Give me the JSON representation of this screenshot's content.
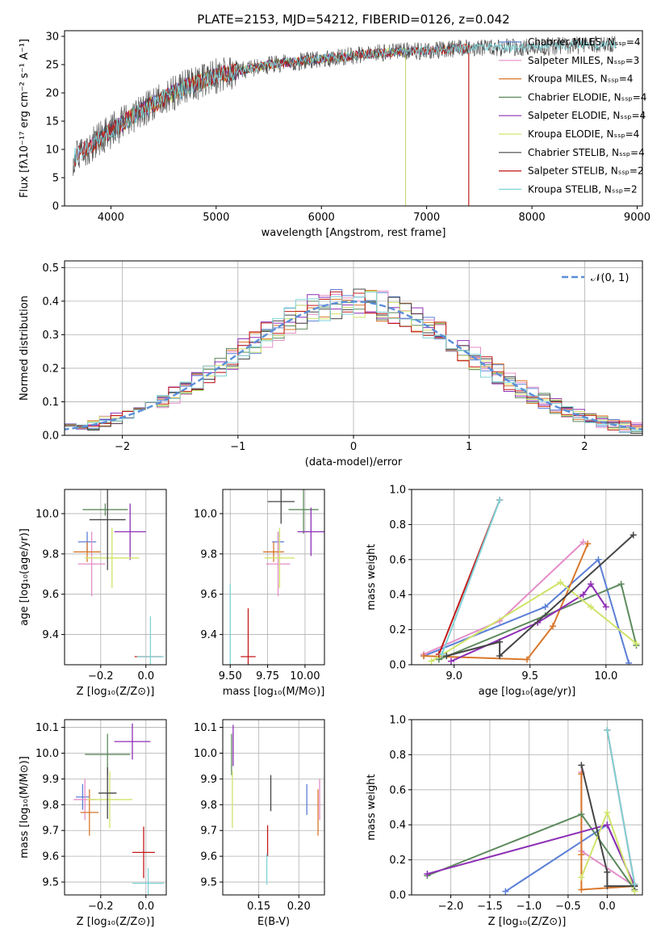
{
  "figure": {
    "title": "PLATE=2153, MJD=54212, FIBERID=0126, z=0.042"
  },
  "chart_data": [
    {
      "id": "spectrum",
      "type": "line",
      "xlabel": "wavelength [Angstrom, rest frame]",
      "ylabel": "Flux [fλ10⁻¹⁷ erg cm⁻² s⁻¹ A⁻¹]",
      "xlim": [
        3560,
        9050
      ],
      "ylim": [
        0,
        31
      ],
      "xticks": [
        4000,
        5000,
        6000,
        7000,
        8000,
        9000
      ],
      "yticks": [
        0,
        5,
        10,
        15,
        20,
        25,
        30
      ],
      "grid": false,
      "legend_position": "top-right",
      "series": [
        {
          "name": "Chabrier MILES, Nₛₛₚ=4",
          "color": "#5b7fd6",
          "x": [
            3640,
            3900,
            4300,
            4700,
            5000,
            5500,
            6000,
            6500,
            7000,
            7400
          ]
        },
        {
          "name": "Salpeter MILES, Nₛₛₚ=3",
          "color": "#e48ec8",
          "x": [
            3640,
            3900,
            4300,
            4700,
            5000,
            5500,
            6000,
            6500,
            7000,
            7400
          ]
        },
        {
          "name": "Kroupa MILES, Nₛₛₚ=4",
          "color": "#d9772b",
          "x": [
            3640,
            3900,
            4300,
            4700,
            5000,
            5500,
            6000,
            6500,
            7000,
            7400
          ]
        },
        {
          "name": "Chabrier ELODIE, Nₛₛₚ=4",
          "color": "#5d8a5d",
          "x": [
            3900,
            4300,
            4700,
            5000,
            5500,
            6000,
            6500,
            6800
          ]
        },
        {
          "name": "Salpeter ELODIE, Nₛₛₚ=4",
          "color": "#8e2fb5",
          "x": [
            3900,
            4300,
            4700,
            5000,
            5500,
            6000,
            6500,
            6800
          ]
        },
        {
          "name": "Kroupa ELODIE, Nₛₛₚ=4",
          "color": "#d0e46a",
          "x": [
            3900,
            4300,
            4700,
            5000,
            5500,
            6000,
            6500,
            6800
          ]
        },
        {
          "name": "Chabrier STELIB, Nₛₛₚ=4",
          "color": "#444444",
          "x": [
            3640,
            3900,
            4300,
            4700,
            5000,
            5500,
            6000,
            6500,
            7000,
            7500,
            8000,
            8500,
            8800
          ]
        },
        {
          "name": "Salpeter STELIB, Nₛₛₚ=2",
          "color": "#c21a1a",
          "x": [
            3640,
            3900,
            4300,
            4700,
            5000,
            5500,
            6000,
            6500,
            7000,
            7400
          ]
        },
        {
          "name": "Kroupa STELIB, Nₛₛₚ=2",
          "color": "#7fd3d8",
          "x": [
            3640,
            3900,
            4300,
            4700,
            5000,
            5500,
            6000,
            6500,
            7000,
            7500,
            8000,
            8500,
            8800
          ]
        }
      ],
      "continuum_y": [
        8.5,
        12,
        17,
        21,
        23,
        25,
        26,
        27,
        27.5,
        28,
        28,
        28.5,
        28.5
      ]
    },
    {
      "id": "residuals",
      "type": "line",
      "xlabel": "(data-model)/error",
      "ylabel": "Normed distribution",
      "xlim": [
        -2.5,
        2.5
      ],
      "ylim": [
        0,
        0.52
      ],
      "xticks": [
        -2,
        -1,
        0,
        1,
        2
      ],
      "yticks": [
        0.0,
        0.1,
        0.2,
        0.3,
        0.4,
        0.5
      ],
      "grid": true,
      "legend_position": "top-right",
      "legend": [
        "𝒩(0, 1)"
      ],
      "reference_curve": {
        "type": "gaussian",
        "mean": 0,
        "sigma": 1,
        "color": "#5b8fd8"
      }
    },
    {
      "id": "z-age",
      "type": "scatter",
      "xlabel": "Z [log₁₀(Z/Z⊙)]",
      "ylabel": "age  [log₁₀(age/yr)]",
      "xlim": [
        -0.36,
        0.09
      ],
      "ylim": [
        9.25,
        10.12
      ],
      "xticks": [
        -0.2,
        0.0
      ],
      "yticks": [
        9.4,
        9.6,
        9.8,
        10.0
      ],
      "grid": true,
      "points": [
        {
          "x": -0.26,
          "y": 9.86,
          "xerr": 0.04,
          "yerr": 0.05,
          "color": "#5b7fd6"
        },
        {
          "x": -0.24,
          "y": 9.75,
          "xerr": 0.06,
          "yerr": 0.16,
          "color": "#e48ec8"
        },
        {
          "x": -0.26,
          "y": 9.81,
          "xerr": 0.06,
          "yerr": 0.05,
          "color": "#d9772b"
        },
        {
          "x": -0.18,
          "y": 10.02,
          "xerr": 0.1,
          "yerr": 0.03,
          "color": "#5d8a5d"
        },
        {
          "x": -0.07,
          "y": 9.91,
          "xerr": 0.07,
          "yerr": 0.14,
          "color": "#8e2fb5"
        },
        {
          "x": -0.15,
          "y": 9.78,
          "xerr": 0.12,
          "yerr": 0.15,
          "color": "#d0e46a"
        },
        {
          "x": -0.17,
          "y": 9.97,
          "xerr": 0.08,
          "yerr": 0.25,
          "color": "#444444"
        },
        {
          "x": 0.01,
          "y": 9.29,
          "xerr": 0.06,
          "yerr": 0.0,
          "color": "#c21a1a"
        },
        {
          "x": 0.02,
          "y": 9.29,
          "xerr": 0.06,
          "yerr": 0.2,
          "color": "#7fd3d8"
        }
      ]
    },
    {
      "id": "mass-age",
      "type": "scatter",
      "xlabel": "mass [log₁₀(M/M⊙)]",
      "ylabel": "",
      "xlim": [
        9.45,
        10.13
      ],
      "ylim": [
        9.25,
        10.12
      ],
      "xticks": [
        9.5,
        9.75,
        10.0
      ],
      "yticks": [
        9.4,
        9.6,
        9.8,
        10.0
      ],
      "grid": true,
      "points": [
        {
          "x": 9.82,
          "y": 9.86,
          "xerr": 0.04,
          "yerr": 0.05,
          "color": "#5b7fd6"
        },
        {
          "x": 9.82,
          "y": 9.75,
          "xerr": 0.08,
          "yerr": 0.16,
          "color": "#e48ec8"
        },
        {
          "x": 9.79,
          "y": 9.81,
          "xerr": 0.07,
          "yerr": 0.05,
          "color": "#d9772b"
        },
        {
          "x": 9.99,
          "y": 10.02,
          "xerr": 0.1,
          "yerr": 0.12,
          "color": "#5d8a5d"
        },
        {
          "x": 10.04,
          "y": 9.91,
          "xerr": 0.09,
          "yerr": 0.12,
          "color": "#8e2fb5"
        },
        {
          "x": 9.83,
          "y": 9.78,
          "xerr": 0.1,
          "yerr": 0.15,
          "color": "#d0e46a"
        },
        {
          "x": 9.84,
          "y": 10.06,
          "xerr": 0.09,
          "yerr": 0.11,
          "color": "#444444"
        },
        {
          "x": 9.62,
          "y": 9.29,
          "xerr": 0.05,
          "yerr": 0.24,
          "color": "#c21a1a"
        },
        {
          "x": 9.5,
          "y": 9.29,
          "xerr": 0.0,
          "yerr": 0.36,
          "color": "#7fd3d8"
        }
      ]
    },
    {
      "id": "age-massweight",
      "type": "line",
      "xlabel": "age  [log₁₀(age/yr)]",
      "ylabel": "mass weight",
      "xlim": [
        8.72,
        10.24
      ],
      "ylim": [
        0,
        1.0
      ],
      "xticks": [
        9.0,
        9.5,
        10.0
      ],
      "yticks": [
        0.0,
        0.2,
        0.4,
        0.6,
        0.8,
        1.0
      ],
      "grid": true,
      "series": [
        {
          "color": "#5b7fd6",
          "x": [
            8.8,
            9.6,
            9.95,
            10.15
          ],
          "y": [
            0.05,
            0.33,
            0.6,
            0.01
          ]
        },
        {
          "color": "#e48ec8",
          "x": [
            8.8,
            9.3,
            9.85
          ],
          "y": [
            0.06,
            0.25,
            0.7
          ]
        },
        {
          "color": "#d9772b",
          "x": [
            8.8,
            9.48,
            9.65,
            9.88
          ],
          "y": [
            0.05,
            0.03,
            0.22,
            0.69
          ]
        },
        {
          "color": "#5d8a5d",
          "x": [
            8.9,
            9.6,
            10.1,
            10.2
          ],
          "y": [
            0.03,
            0.28,
            0.46,
            0.11
          ]
        },
        {
          "color": "#8e2fb5",
          "x": [
            8.98,
            9.55,
            9.85,
            9.9,
            10.0
          ],
          "y": [
            0.02,
            0.24,
            0.4,
            0.46,
            0.33
          ]
        },
        {
          "color": "#d0e46a",
          "x": [
            8.85,
            9.7,
            9.9,
            10.2
          ],
          "y": [
            0.02,
            0.47,
            0.33,
            0.12
          ]
        },
        {
          "color": "#444444",
          "x": [
            8.95,
            9.3,
            9.3,
            10.18
          ],
          "y": [
            0.05,
            0.13,
            0.05,
            0.74
          ]
        },
        {
          "color": "#c21a1a",
          "x": [
            8.9,
            9.3
          ],
          "y": [
            0.06,
            0.94
          ]
        },
        {
          "color": "#7fd3d8",
          "x": [
            8.92,
            9.3
          ],
          "y": [
            0.06,
            0.94
          ]
        }
      ]
    },
    {
      "id": "z-mass",
      "type": "scatter",
      "xlabel": "Z [log₁₀(Z/Z⊙)]",
      "ylabel": "mass [log₁₀(M/M⊙)]",
      "xlim": [
        -0.36,
        0.09
      ],
      "ylim": [
        9.45,
        10.13
      ],
      "xticks": [
        -0.2,
        0.0
      ],
      "yticks": [
        9.5,
        9.6,
        9.7,
        9.8,
        9.9,
        10.0,
        10.1
      ],
      "grid": true,
      "points": [
        {
          "x": -0.28,
          "y": 9.83,
          "xerr": 0.03,
          "yerr": 0.05,
          "color": "#5b7fd6"
        },
        {
          "x": -0.27,
          "y": 9.82,
          "xerr": 0.05,
          "yerr": 0.08,
          "color": "#e48ec8"
        },
        {
          "x": -0.25,
          "y": 9.77,
          "xerr": 0.04,
          "yerr": 0.09,
          "color": "#d9772b"
        },
        {
          "x": -0.17,
          "y": 9.995,
          "xerr": 0.1,
          "yerr": 0.08,
          "color": "#5d8a5d"
        },
        {
          "x": -0.06,
          "y": 10.045,
          "xerr": 0.08,
          "yerr": 0.07,
          "color": "#8e2fb5"
        },
        {
          "x": -0.16,
          "y": 9.82,
          "xerr": 0.1,
          "yerr": 0.11,
          "color": "#d0e46a"
        },
        {
          "x": -0.17,
          "y": 9.845,
          "xerr": 0.04,
          "yerr": 0.1,
          "color": "#444444"
        },
        {
          "x": -0.01,
          "y": 9.615,
          "xerr": 0.05,
          "yerr": 0.1,
          "color": "#c21a1a"
        },
        {
          "x": 0.01,
          "y": 9.495,
          "xerr": 0.07,
          "yerr": 0.06,
          "color": "#7fd3d8"
        }
      ]
    },
    {
      "id": "ebv-mass",
      "type": "scatter",
      "xlabel": "E(B-V)",
      "ylabel": "",
      "xlim": [
        0.105,
        0.232
      ],
      "ylim": [
        9.45,
        10.13
      ],
      "xticks": [
        0.15,
        0.2
      ],
      "yticks": [
        9.5,
        9.6,
        9.7,
        9.8,
        9.9,
        10.0,
        10.1
      ],
      "grid": true,
      "points": [
        {
          "x": 0.21,
          "y": 9.82,
          "xerr": 0.0,
          "yerr": 0.06,
          "color": "#5b7fd6"
        },
        {
          "x": 0.226,
          "y": 9.82,
          "xerr": 0.0,
          "yerr": 0.08,
          "color": "#e48ec8"
        },
        {
          "x": 0.224,
          "y": 9.77,
          "xerr": 0.0,
          "yerr": 0.09,
          "color": "#d9772b"
        },
        {
          "x": 0.116,
          "y": 9.995,
          "xerr": 0.0,
          "yerr": 0.08,
          "color": "#5d8a5d"
        },
        {
          "x": 0.118,
          "y": 10.03,
          "xerr": 0.0,
          "yerr": 0.08,
          "color": "#8e2fb5"
        },
        {
          "x": 0.117,
          "y": 9.82,
          "xerr": 0.0,
          "yerr": 0.11,
          "color": "#d0e46a"
        },
        {
          "x": 0.165,
          "y": 9.845,
          "xerr": 0.0,
          "yerr": 0.07,
          "color": "#444444"
        },
        {
          "x": 0.161,
          "y": 9.66,
          "xerr": 0.0,
          "yerr": 0.06,
          "color": "#c21a1a"
        },
        {
          "x": 0.16,
          "y": 9.55,
          "xerr": 0.0,
          "yerr": 0.06,
          "color": "#7fd3d8"
        }
      ]
    },
    {
      "id": "z-massweight",
      "type": "line",
      "xlabel": "Z [log₁₀(Z/Z⊙)]",
      "ylabel": "mass weight",
      "xlim": [
        -2.5,
        0.45
      ],
      "ylim": [
        0,
        1.0
      ],
      "xticks": [
        -2.0,
        -1.5,
        -1.0,
        -0.5,
        0.0
      ],
      "yticks": [
        0.0,
        0.2,
        0.4,
        0.6,
        0.8,
        1.0
      ],
      "grid": true,
      "series": [
        {
          "color": "#5b7fd6",
          "x": [
            -1.3,
            0.0,
            0.35
          ],
          "y": [
            0.02,
            0.4,
            0.05
          ]
        },
        {
          "color": "#e48ec8",
          "x": [
            -0.33,
            -0.33,
            0.35
          ],
          "y": [
            0.7,
            0.25,
            0.05
          ]
        },
        {
          "color": "#d9772b",
          "x": [
            -0.33,
            -0.33,
            -0.33,
            0.35
          ],
          "y": [
            0.69,
            0.23,
            0.03,
            0.05
          ]
        },
        {
          "color": "#5d8a5d",
          "x": [
            -2.3,
            -0.33,
            0.35
          ],
          "y": [
            0.11,
            0.46,
            0.03
          ]
        },
        {
          "color": "#8e2fb5",
          "x": [
            -2.3,
            0.0,
            0.35
          ],
          "y": [
            0.12,
            0.4,
            0.05
          ]
        },
        {
          "color": "#d0e46a",
          "x": [
            -0.33,
            0.0,
            0.35
          ],
          "y": [
            0.1,
            0.47,
            0.02
          ]
        },
        {
          "color": "#444444",
          "x": [
            -0.33,
            0.0,
            0.0,
            0.35
          ],
          "y": [
            0.74,
            0.13,
            0.05,
            0.05
          ]
        },
        {
          "color": "#c21a1a",
          "x": [
            0.0,
            0.35
          ],
          "y": [
            0.94,
            0.06
          ]
        },
        {
          "color": "#7fd3d8",
          "x": [
            0.0,
            0.35
          ],
          "y": [
            0.94,
            0.06
          ]
        }
      ]
    }
  ]
}
